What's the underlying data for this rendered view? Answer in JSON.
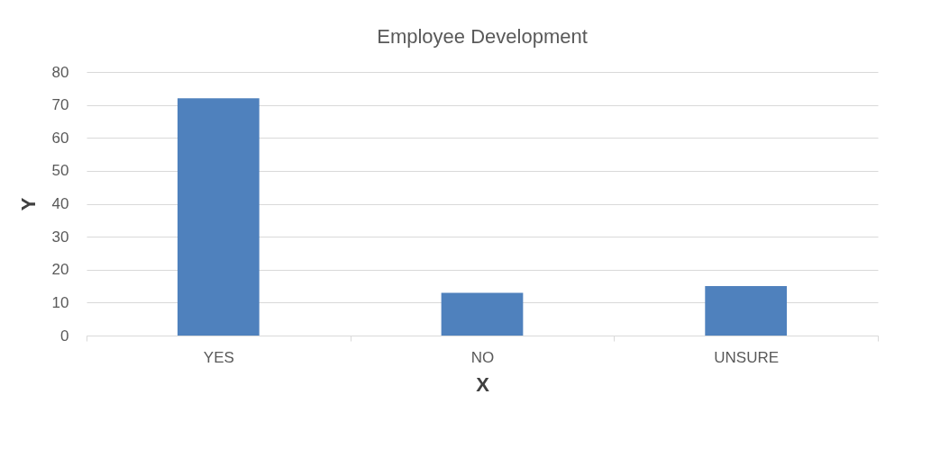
{
  "chart_data": {
    "type": "bar",
    "title": "Employee Development",
    "xlabel": "X",
    "ylabel": "Y",
    "categories": [
      "YES",
      "NO",
      "UNSURE"
    ],
    "values": [
      72,
      13,
      15
    ],
    "color": "#4f81bd",
    "ylim": [
      0,
      80
    ],
    "yticks": [
      0,
      10,
      20,
      30,
      40,
      50,
      60,
      70,
      80
    ],
    "grid": "y"
  }
}
